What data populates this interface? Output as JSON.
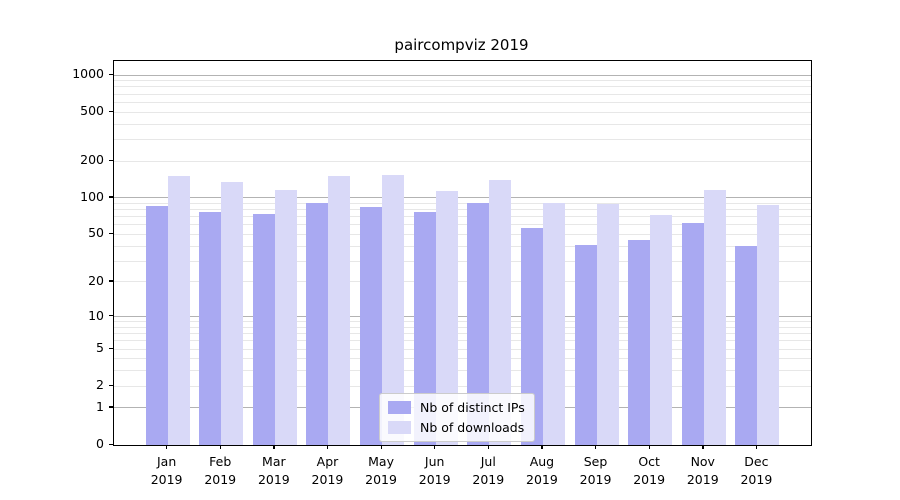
{
  "title": "paircompviz 2019",
  "colors": {
    "distinct_ips_bar": "#a9a9f2",
    "downloads_bar": "#d9d9f8",
    "grid_major": "#b3b3b3",
    "grid_minor": "#e7e7e7",
    "axis": "#000000"
  },
  "legend": {
    "items": [
      {
        "label": "Nb of distinct IPs",
        "color_key": "distinct_ips_bar"
      },
      {
        "label": "Nb of downloads",
        "color_key": "downloads_bar"
      }
    ],
    "position": "lower center"
  },
  "chart_data": {
    "type": "bar",
    "title": "paircompviz 2019",
    "categories": [
      "Jan",
      "Feb",
      "Mar",
      "Apr",
      "May",
      "Jun",
      "Jul",
      "Aug",
      "Sep",
      "Oct",
      "Nov",
      "Dec"
    ],
    "category_year": "2019",
    "series": [
      {
        "name": "Nb of distinct IPs",
        "values": [
          85,
          77,
          74,
          90,
          84,
          76,
          90,
          57,
          41,
          45,
          62,
          40
        ]
      },
      {
        "name": "Nb of downloads",
        "values": [
          150,
          135,
          117,
          152,
          155,
          114,
          141,
          91,
          89,
          72,
          116,
          88
        ]
      }
    ],
    "xlabel": "",
    "ylabel": "",
    "yscale": "symlog_log1p",
    "y_ticks": [
      0,
      1,
      2,
      5,
      10,
      20,
      50,
      100,
      200,
      500,
      1000
    ],
    "y_major_gridlines": [
      1,
      10,
      100,
      1000
    ],
    "ylim": [
      0,
      1300
    ],
    "grid": "both",
    "legend_position": "lower center"
  }
}
